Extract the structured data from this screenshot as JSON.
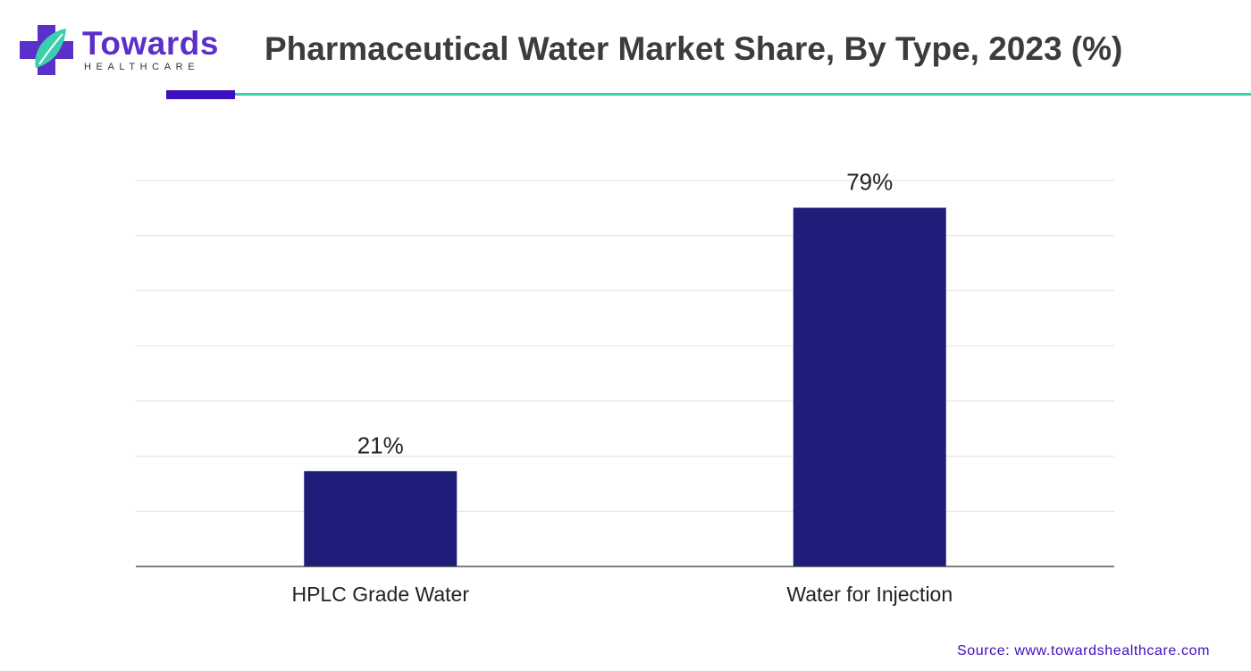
{
  "logo": {
    "word": "Towards",
    "subword": "HEALTHCARE"
  },
  "header": {
    "title": "Pharmaceutical Water Market Share, By Type, 2023 (%)"
  },
  "colors": {
    "bar": "#1e1e7a",
    "accent": "#3c0fbd",
    "rule": "#3ccfae",
    "grid": "#e0e0e0",
    "axis": "#333333",
    "text": "#222222"
  },
  "chart_data": {
    "type": "bar",
    "title": "Pharmaceutical Water Market Share, By Type, 2023 (%)",
    "xlabel": "",
    "ylabel": "",
    "categories": [
      "HPLC Grade Water",
      "Water for Injection"
    ],
    "values": [
      21,
      79
    ],
    "data_labels": [
      "21%",
      "79%"
    ],
    "ylim": [
      0,
      85
    ],
    "grid": true,
    "legend": "none"
  },
  "footer": {
    "source": "Source: www.towardshealthcare.com"
  }
}
